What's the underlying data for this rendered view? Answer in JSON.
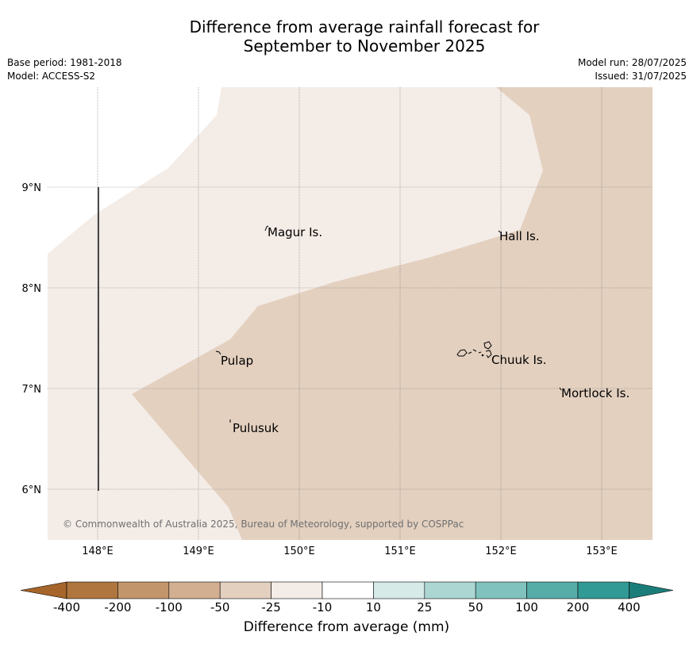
{
  "title": {
    "line1": "Difference from average rainfall forecast for",
    "line2": "September to November 2025"
  },
  "info": {
    "base_period": "Base period: 1981-2018",
    "model": "Model: ACCESS-S2",
    "model_run": "Model run: 28/07/2025",
    "issued": "Issued: 31/07/2025"
  },
  "map": {
    "lon_labels": [
      "148°E",
      "149°E",
      "150°E",
      "151°E",
      "152°E",
      "153°E"
    ],
    "lat_labels": [
      "9°N",
      "8°N",
      "7°N",
      "6°N"
    ],
    "places": [
      "Magur Is.",
      "Hall Is.",
      "Pulap",
      "Chuuk Is.",
      "Mortlock Is.",
      "Pulusuk"
    ],
    "copyright": "© Commonwealth of Australia 2025, Bureau of Meteorology, supported by COSPPac",
    "colors": {
      "band_-25_-10": "#f4ece7",
      "band_-50_-25": "#e3d0bf",
      "grid": "#808080"
    }
  },
  "colorbar": {
    "labels": [
      "-400",
      "-200",
      "-100",
      "-50",
      "-25",
      "-10",
      "10",
      "25",
      "50",
      "100",
      "200",
      "400"
    ],
    "colors": [
      "#a6652a",
      "#af763f",
      "#c3956a",
      "#d2af90",
      "#e3d0bf",
      "#f4ece7",
      "#ffffff",
      "#d6ebe8",
      "#acd6d2",
      "#80c2bd",
      "#56aca7",
      "#319a95",
      "#1b7d79"
    ],
    "title": "Difference from average (mm)"
  }
}
